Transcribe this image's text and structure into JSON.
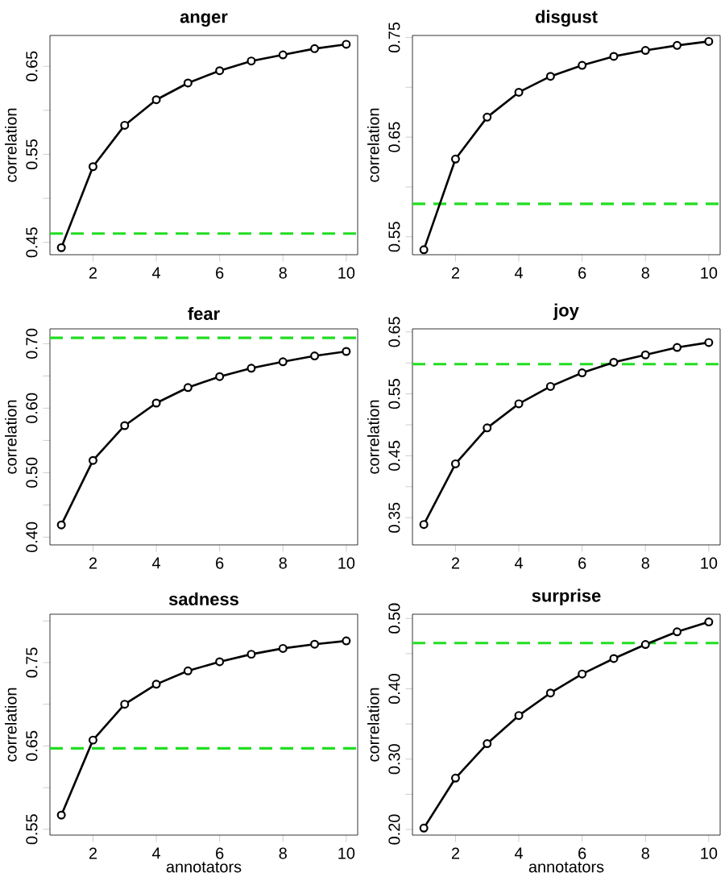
{
  "chart_data": [
    {
      "type": "line",
      "title": "anger",
      "ylabel": "correlation",
      "x": [
        1,
        2,
        3,
        4,
        5,
        6,
        7,
        8,
        9,
        10
      ],
      "values": [
        0.444,
        0.536,
        0.583,
        0.612,
        0.631,
        0.645,
        0.656,
        0.663,
        0.67,
        0.675
      ],
      "color": "#000000",
      "marker": "circle",
      "line_style": "solid",
      "xlim": [
        0.64,
        10.36
      ],
      "ylim": [
        0.436,
        0.685
      ],
      "xticks": [
        2,
        4,
        6,
        8,
        10
      ],
      "yticks": [
        0.45,
        {
          "value": 0.5,
          "label": null
        },
        0.55,
        {
          "value": 0.6,
          "label": null
        },
        0.65
      ],
      "ref_lines": [
        {
          "axis": "y",
          "value": 0.46,
          "color": "#22dd22",
          "line_style": "dashed"
        }
      ]
    },
    {
      "type": "line",
      "title": "disgust",
      "ylabel": "correlation",
      "x": [
        1,
        2,
        3,
        4,
        5,
        6,
        7,
        8,
        9,
        10
      ],
      "values": [
        0.537,
        0.628,
        0.67,
        0.695,
        0.711,
        0.722,
        0.731,
        0.737,
        0.742,
        0.746
      ],
      "color": "#000000",
      "marker": "circle",
      "line_style": "solid",
      "xlim": [
        0.64,
        10.36
      ],
      "ylim": [
        0.532,
        0.752
      ],
      "xticks": [
        2,
        4,
        6,
        8,
        10
      ],
      "yticks": [
        0.55,
        {
          "value": 0.6,
          "label": null
        },
        0.65,
        {
          "value": 0.7,
          "label": null
        },
        0.75
      ],
      "ref_lines": [
        {
          "axis": "y",
          "value": 0.583,
          "color": "#22dd22",
          "line_style": "dashed"
        }
      ]
    },
    {
      "type": "line",
      "title": "fear",
      "ylabel": "correlation",
      "x": [
        1,
        2,
        3,
        4,
        5,
        6,
        7,
        8,
        9,
        10
      ],
      "values": [
        0.419,
        0.519,
        0.573,
        0.608,
        0.632,
        0.649,
        0.662,
        0.672,
        0.681,
        0.688
      ],
      "color": "#000000",
      "marker": "circle",
      "line_style": "solid",
      "xlim": [
        0.64,
        10.36
      ],
      "ylim": [
        0.388,
        0.723
      ],
      "xticks": [
        2,
        4,
        6,
        8,
        10
      ],
      "yticks": [
        {
          "value": 0.4,
          "label": "0.40"
        },
        {
          "value": 0.45,
          "label": null
        },
        {
          "value": 0.5,
          "label": "0.50"
        },
        {
          "value": 0.55,
          "label": null
        },
        {
          "value": 0.6,
          "label": "0.60"
        },
        {
          "value": 0.65,
          "label": null
        },
        {
          "value": 0.7,
          "label": "0.70"
        }
      ],
      "ref_lines": [
        {
          "axis": "y",
          "value": 0.709,
          "color": "#22dd22",
          "line_style": "dashed"
        }
      ]
    },
    {
      "type": "line",
      "title": "joy",
      "ylabel": "correlation",
      "x": [
        1,
        2,
        3,
        4,
        5,
        6,
        7,
        8,
        9,
        10
      ],
      "values": [
        0.339,
        0.437,
        0.495,
        0.534,
        0.562,
        0.584,
        0.601,
        0.613,
        0.625,
        0.633
      ],
      "color": "#000000",
      "marker": "circle",
      "line_style": "solid",
      "xlim": [
        0.64,
        10.36
      ],
      "ylim": [
        0.306,
        0.655
      ],
      "xticks": [
        2,
        4,
        6,
        8,
        10
      ],
      "yticks": [
        0.35,
        {
          "value": 0.4,
          "label": null
        },
        0.45,
        {
          "value": 0.5,
          "label": null
        },
        0.55,
        {
          "value": 0.6,
          "label": null
        },
        0.65
      ],
      "ref_lines": [
        {
          "axis": "y",
          "value": 0.598,
          "color": "#22dd22",
          "line_style": "dashed"
        }
      ]
    },
    {
      "type": "line",
      "title": "sadness",
      "xlabel": "annotators",
      "ylabel": "correlation",
      "x": [
        1,
        2,
        3,
        4,
        5,
        6,
        7,
        8,
        9,
        10
      ],
      "values": [
        0.567,
        0.657,
        0.7,
        0.724,
        0.74,
        0.751,
        0.76,
        0.767,
        0.772,
        0.776
      ],
      "color": "#000000",
      "marker": "circle",
      "line_style": "solid",
      "xlim": [
        0.64,
        10.36
      ],
      "ylim": [
        0.543,
        0.808
      ],
      "xticks": [
        2,
        4,
        6,
        8,
        10
      ],
      "yticks": [
        0.55,
        {
          "value": 0.6,
          "label": null
        },
        0.65,
        {
          "value": 0.7,
          "label": null
        },
        0.75,
        {
          "value": 0.8,
          "label": null
        }
      ],
      "ref_lines": [
        {
          "axis": "y",
          "value": 0.647,
          "color": "#22dd22",
          "line_style": "dashed"
        }
      ]
    },
    {
      "type": "line",
      "title": "surprise",
      "xlabel": "annotators",
      "ylabel": "correlation",
      "x": [
        1,
        2,
        3,
        4,
        5,
        6,
        7,
        8,
        9,
        10
      ],
      "values": [
        0.202,
        0.273,
        0.322,
        0.362,
        0.394,
        0.421,
        0.443,
        0.463,
        0.481,
        0.495
      ],
      "color": "#000000",
      "marker": "circle",
      "line_style": "solid",
      "xlim": [
        0.64,
        10.36
      ],
      "ylim": [
        0.192,
        0.506
      ],
      "xticks": [
        2,
        4,
        6,
        8,
        10
      ],
      "yticks": [
        {
          "value": 0.2,
          "label": "0.20"
        },
        {
          "value": 0.25,
          "label": null
        },
        {
          "value": 0.3,
          "label": "0.30"
        },
        {
          "value": 0.35,
          "label": null
        },
        {
          "value": 0.4,
          "label": "0.40"
        },
        {
          "value": 0.45,
          "label": null
        },
        {
          "value": 0.5,
          "label": "0.50"
        }
      ],
      "ref_lines": [
        {
          "axis": "y",
          "value": 0.465,
          "color": "#22dd22",
          "line_style": "dashed"
        }
      ]
    }
  ]
}
